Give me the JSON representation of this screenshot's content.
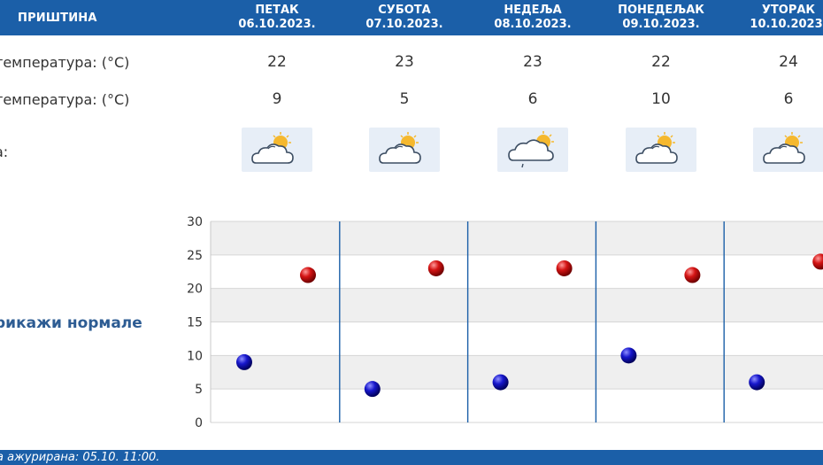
{
  "header": {
    "city": "ПРИШТИНА",
    "days": [
      {
        "name": "ПЕТАК",
        "date": "06.10.2023."
      },
      {
        "name": "СУБОТА",
        "date": "07.10.2023."
      },
      {
        "name": "НЕДЕЉА",
        "date": "08.10.2023."
      },
      {
        "name": "ПОНЕДЕЉАК",
        "date": "09.10.2023."
      },
      {
        "name": "УТОРАК",
        "date": "10.10.2023."
      }
    ]
  },
  "rows": {
    "max_label": "температура: (°C)",
    "min_label": "температура: (°C)",
    "weather_label": "а:",
    "max_values": [
      "22",
      "23",
      "23",
      "22",
      "24"
    ],
    "min_values": [
      "9",
      "5",
      "6",
      "10",
      "6"
    ],
    "icons": [
      "partly-cloudy-icon",
      "partly-cloudy-icon",
      "cloudy-light-rain-icon",
      "partly-cloudy-icon",
      "partly-cloudy-icon"
    ]
  },
  "normals_link": "рикажи нормале",
  "chart_data": {
    "type": "scatter",
    "ylim": [
      0,
      30
    ],
    "yticks": [
      "0",
      "5",
      "10",
      "15",
      "20",
      "25",
      "30"
    ],
    "x": [
      "06.10.2023.",
      "07.10.2023.",
      "08.10.2023.",
      "09.10.2023.",
      "10.10.2023."
    ],
    "series": [
      {
        "values": [
          9,
          5,
          6,
          10,
          6
        ],
        "color": "#1a1acc"
      },
      {
        "values": [
          22,
          23,
          23,
          22,
          24
        ],
        "color": "#cc1111"
      }
    ],
    "grid": true
  },
  "footer": {
    "text": "а ажурирана:  05.10. 11:00."
  },
  "colors": {
    "header": "#1b5fa8",
    "max_dot": "#cc1111",
    "min_dot": "#1a1acc",
    "link": "#2d5c93"
  }
}
